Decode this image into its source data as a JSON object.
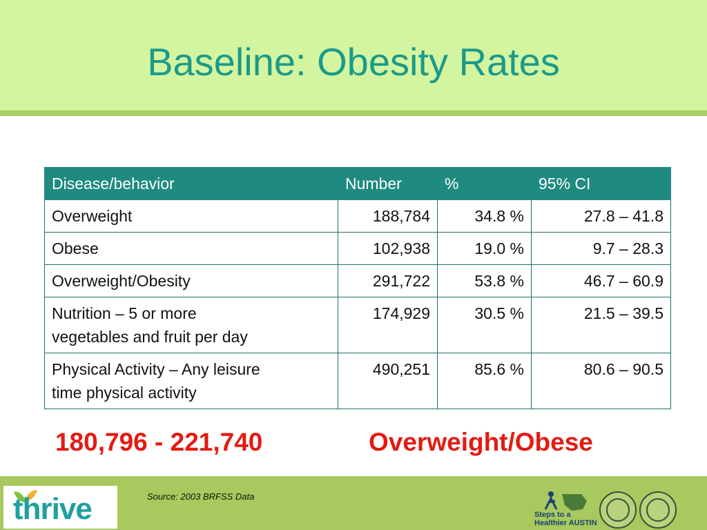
{
  "slide": {
    "title": "Baseline: Obesity Rates"
  },
  "table": {
    "headers": [
      "Disease/behavior",
      "Number",
      "%",
      "95% CI"
    ],
    "rows": [
      {
        "label": "Overweight",
        "number": "188,784",
        "percent": "34.8 %",
        "ci": "27.8 – 41.8"
      },
      {
        "label": "Obese",
        "number": "102,938",
        "percent": "19.0 %",
        "ci": "9.7 – 28.3"
      },
      {
        "label": "Overweight/Obesity",
        "number": "291,722",
        "percent": "53.8 %",
        "ci": "46.7 – 60.9"
      },
      {
        "label_line1": "Nutrition – 5 or more",
        "label_line2": "vegetables and fruit per day",
        "number": "174,929",
        "percent": "30.5 %",
        "ci": "21.5 – 39.5"
      },
      {
        "label_line1": "Physical Activity – Any leisure",
        "label_line2": "time physical activity",
        "number": "490,251",
        "percent": "85.6 %",
        "ci": "80.6 – 90.5"
      }
    ]
  },
  "summary": {
    "range": "180,796 - 221,740",
    "label": "Overweight/Obese"
  },
  "footer": {
    "source": "Source: 2003 BRFSS Data",
    "logo_text": "thrive",
    "steps_text": "Steps to a Healthier AUSTIN"
  },
  "colors": {
    "title": "#1a9a8a",
    "header_fill": "#1e8a80",
    "summary": "#e31b12",
    "header_bg": "#d4f5a0",
    "bottom_band": "#a8c95d"
  }
}
